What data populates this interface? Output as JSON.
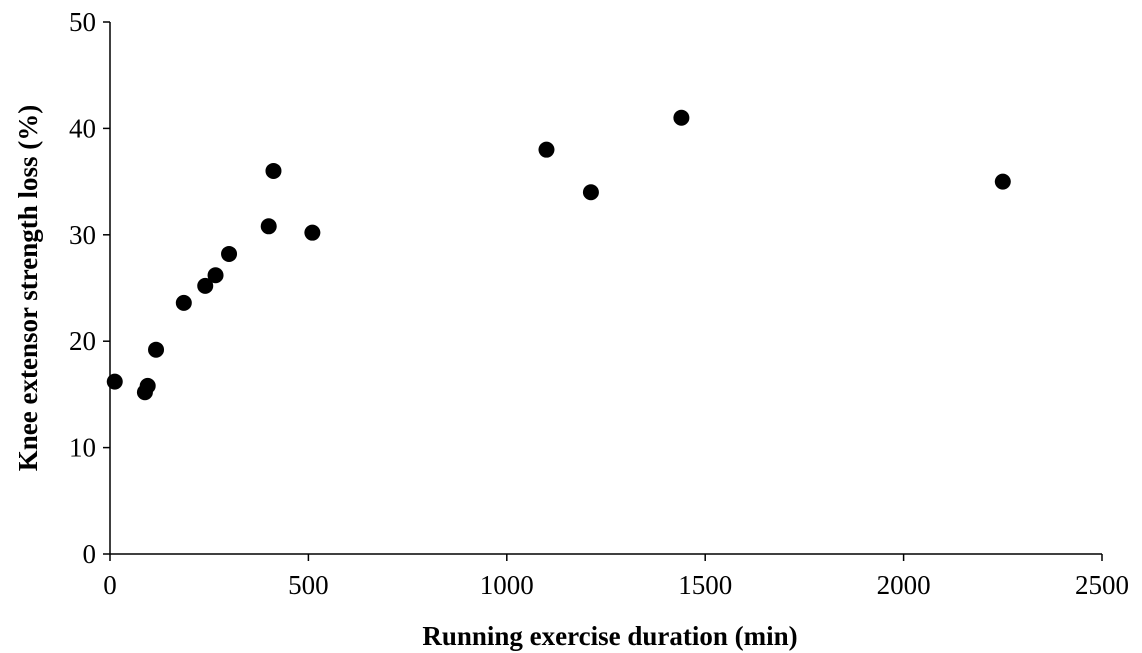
{
  "chart_data": {
    "type": "scatter",
    "title": "",
    "xlabel": "Running exercise duration (min)",
    "ylabel": "Knee extensor strength loss (%)",
    "xlim": [
      0,
      2500
    ],
    "ylim": [
      0,
      50
    ],
    "x_ticks": [
      0,
      500,
      1000,
      1500,
      2000,
      2500
    ],
    "y_ticks": [
      0,
      10,
      20,
      30,
      40,
      50
    ],
    "x_tick_labels": [
      "0",
      "500",
      "1000",
      "1500",
      "2000",
      "2500"
    ],
    "y_tick_labels": [
      "0",
      "10",
      "20",
      "30",
      "40",
      "50"
    ],
    "grid": false,
    "legend": "none",
    "marker_color": "#000000",
    "axis_color": "#000000",
    "points": [
      {
        "x": 12,
        "y": 16.2
      },
      {
        "x": 88,
        "y": 15.2
      },
      {
        "x": 95,
        "y": 15.8
      },
      {
        "x": 116,
        "y": 19.2
      },
      {
        "x": 186,
        "y": 23.6
      },
      {
        "x": 240,
        "y": 25.2
      },
      {
        "x": 266,
        "y": 26.2
      },
      {
        "x": 300,
        "y": 28.2
      },
      {
        "x": 400,
        "y": 30.8
      },
      {
        "x": 412,
        "y": 36.0
      },
      {
        "x": 510,
        "y": 30.2
      },
      {
        "x": 1100,
        "y": 38.0
      },
      {
        "x": 1212,
        "y": 34.0
      },
      {
        "x": 1440,
        "y": 41.0
      },
      {
        "x": 2250,
        "y": 35.0
      }
    ]
  }
}
